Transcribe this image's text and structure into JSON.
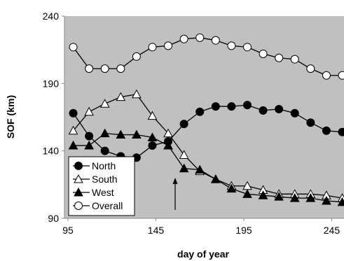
{
  "chart_data": {
    "type": "line",
    "x": [
      98,
      107,
      116,
      125,
      134,
      143,
      152,
      161,
      170,
      179,
      188,
      197,
      206,
      215,
      224,
      233,
      242,
      251
    ],
    "xlabel": "day of year",
    "ylabel": "SOF (km)",
    "xlim": [
      93,
      252
    ],
    "ylim": [
      90,
      240
    ],
    "xticks": [
      95,
      145,
      195,
      245
    ],
    "yticks": [
      90,
      140,
      190,
      240
    ],
    "background": "#c0c0c0",
    "legend": "lower left",
    "series": [
      {
        "name": "North",
        "color": "#000000",
        "marker": "circle-filled",
        "values": [
          168,
          151,
          140,
          136,
          135,
          144,
          147,
          160,
          169,
          173,
          173,
          174,
          170,
          171,
          168,
          161,
          155,
          154
        ]
      },
      {
        "name": "South",
        "color": "#000000",
        "marker": "triangle-open",
        "values": [
          155,
          169,
          175,
          180,
          182,
          166,
          153,
          137,
          125,
          119,
          114,
          114,
          111,
          108,
          108,
          108,
          107,
          105
        ]
      },
      {
        "name": "West",
        "color": "#000000",
        "marker": "triangle-filled",
        "values": [
          144,
          144,
          153,
          152,
          152,
          150,
          144,
          127,
          126,
          119,
          112,
          108,
          107,
          106,
          105,
          105,
          103,
          102
        ]
      },
      {
        "name": "Overall",
        "color": "#000000",
        "marker": "circle-open",
        "values": [
          217,
          201,
          201,
          201,
          210,
          217,
          218,
          223,
          224,
          222,
          218,
          217,
          212,
          209,
          208,
          201,
          196,
          196
        ]
      }
    ]
  }
}
